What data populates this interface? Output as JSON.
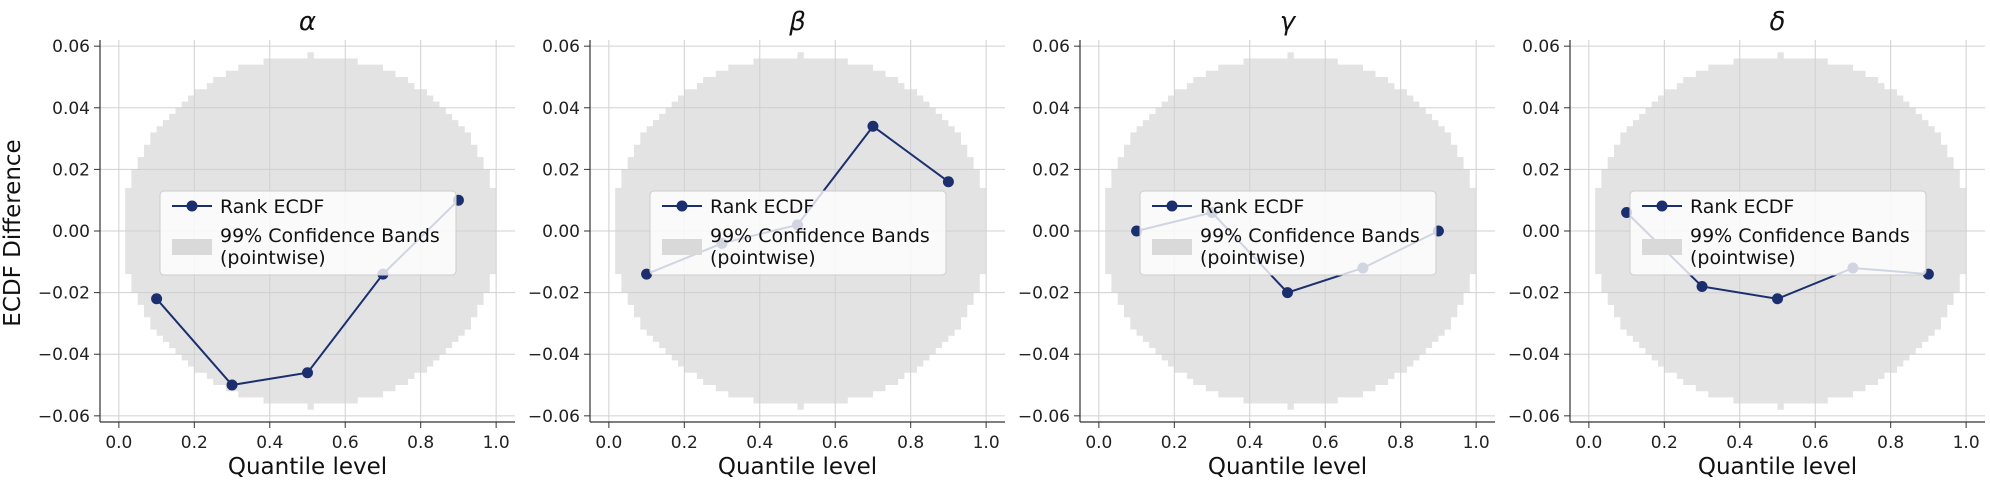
{
  "figure": {
    "ylabel": "ECDF Difference",
    "colors": {
      "line": "#1b2f6e",
      "band": "#d9d9d9",
      "grid": "#d0d0d0",
      "axis": "#333333"
    }
  },
  "chart_data": [
    {
      "type": "line",
      "title": "α",
      "xlabel": "Quantile level",
      "ylabel": "ECDF Difference",
      "xlim": [
        -0.05,
        1.05
      ],
      "ylim": [
        -0.062,
        0.062
      ],
      "xticks": [
        0.0,
        0.2,
        0.4,
        0.6,
        0.8,
        1.0
      ],
      "xtick_labels": [
        "0.0",
        "0.2",
        "0.4",
        "0.6",
        "0.8",
        "1.0"
      ],
      "yticks": [
        -0.06,
        -0.04,
        -0.02,
        0.0,
        0.02,
        0.04,
        0.06
      ],
      "ytick_labels": [
        "−0.06",
        "−0.04",
        "−0.02",
        "0.00",
        "0.02",
        "0.04",
        "0.06"
      ],
      "grid": true,
      "legend": {
        "placement": "center",
        "entries": [
          "Rank ECDF",
          "99% Confidence Bands\n(pointwise)"
        ]
      },
      "band": {
        "label": "99% Confidence Bands (pointwise)",
        "type": "pointwise",
        "level": 0.99,
        "max_halfwidth": 0.057
      },
      "series": [
        {
          "name": "Rank ECDF",
          "x": [
            0.1,
            0.3,
            0.5,
            0.7,
            0.9
          ],
          "y": [
            -0.022,
            -0.05,
            -0.046,
            -0.014,
            0.01
          ]
        }
      ]
    },
    {
      "type": "line",
      "title": "β",
      "xlabel": "Quantile level",
      "ylabel": "",
      "xlim": [
        -0.05,
        1.05
      ],
      "ylim": [
        -0.062,
        0.062
      ],
      "xticks": [
        0.0,
        0.2,
        0.4,
        0.6,
        0.8,
        1.0
      ],
      "xtick_labels": [
        "0.0",
        "0.2",
        "0.4",
        "0.6",
        "0.8",
        "1.0"
      ],
      "yticks": [
        -0.06,
        -0.04,
        -0.02,
        0.0,
        0.02,
        0.04,
        0.06
      ],
      "ytick_labels": [
        "−0.06",
        "−0.04",
        "−0.02",
        "0.00",
        "0.02",
        "0.04",
        "0.06"
      ],
      "grid": true,
      "legend": {
        "placement": "center",
        "entries": [
          "Rank ECDF",
          "99% Confidence Bands\n(pointwise)"
        ]
      },
      "band": {
        "label": "99% Confidence Bands (pointwise)",
        "type": "pointwise",
        "level": 0.99,
        "max_halfwidth": 0.057
      },
      "series": [
        {
          "name": "Rank ECDF",
          "x": [
            0.1,
            0.3,
            0.5,
            0.7,
            0.9
          ],
          "y": [
            -0.014,
            -0.004,
            0.002,
            0.034,
            0.016
          ]
        }
      ]
    },
    {
      "type": "line",
      "title": "γ",
      "xlabel": "Quantile level",
      "ylabel": "",
      "xlim": [
        -0.05,
        1.05
      ],
      "ylim": [
        -0.062,
        0.062
      ],
      "xticks": [
        0.0,
        0.2,
        0.4,
        0.6,
        0.8,
        1.0
      ],
      "xtick_labels": [
        "0.0",
        "0.2",
        "0.4",
        "0.6",
        "0.8",
        "1.0"
      ],
      "yticks": [
        -0.06,
        -0.04,
        -0.02,
        0.0,
        0.02,
        0.04,
        0.06
      ],
      "ytick_labels": [
        "−0.06",
        "−0.04",
        "−0.02",
        "0.00",
        "0.02",
        "0.04",
        "0.06"
      ],
      "grid": true,
      "legend": {
        "placement": "center",
        "entries": [
          "Rank ECDF",
          "99% Confidence Bands\n(pointwise)"
        ]
      },
      "band": {
        "label": "99% Confidence Bands (pointwise)",
        "type": "pointwise",
        "level": 0.99,
        "max_halfwidth": 0.057
      },
      "series": [
        {
          "name": "Rank ECDF",
          "x": [
            0.1,
            0.3,
            0.5,
            0.7,
            0.9
          ],
          "y": [
            0.0,
            0.006,
            -0.02,
            -0.012,
            0.0
          ]
        }
      ]
    },
    {
      "type": "line",
      "title": "δ",
      "xlabel": "Quantile level",
      "ylabel": "",
      "xlim": [
        -0.05,
        1.05
      ],
      "ylim": [
        -0.062,
        0.062
      ],
      "xticks": [
        0.0,
        0.2,
        0.4,
        0.6,
        0.8,
        1.0
      ],
      "xtick_labels": [
        "0.0",
        "0.2",
        "0.4",
        "0.6",
        "0.8",
        "1.0"
      ],
      "yticks": [
        -0.06,
        -0.04,
        -0.02,
        0.0,
        0.02,
        0.04,
        0.06
      ],
      "ytick_labels": [
        "−0.06",
        "−0.04",
        "−0.02",
        "0.00",
        "0.02",
        "0.04",
        "0.06"
      ],
      "grid": true,
      "legend": {
        "placement": "center",
        "entries": [
          "Rank ECDF",
          "99% Confidence Bands\n(pointwise)"
        ]
      },
      "band": {
        "label": "99% Confidence Bands (pointwise)",
        "type": "pointwise",
        "level": 0.99,
        "max_halfwidth": 0.057
      },
      "series": [
        {
          "name": "Rank ECDF",
          "x": [
            0.1,
            0.3,
            0.5,
            0.7,
            0.9
          ],
          "y": [
            0.006,
            -0.018,
            -0.022,
            -0.012,
            -0.014
          ]
        }
      ]
    }
  ]
}
